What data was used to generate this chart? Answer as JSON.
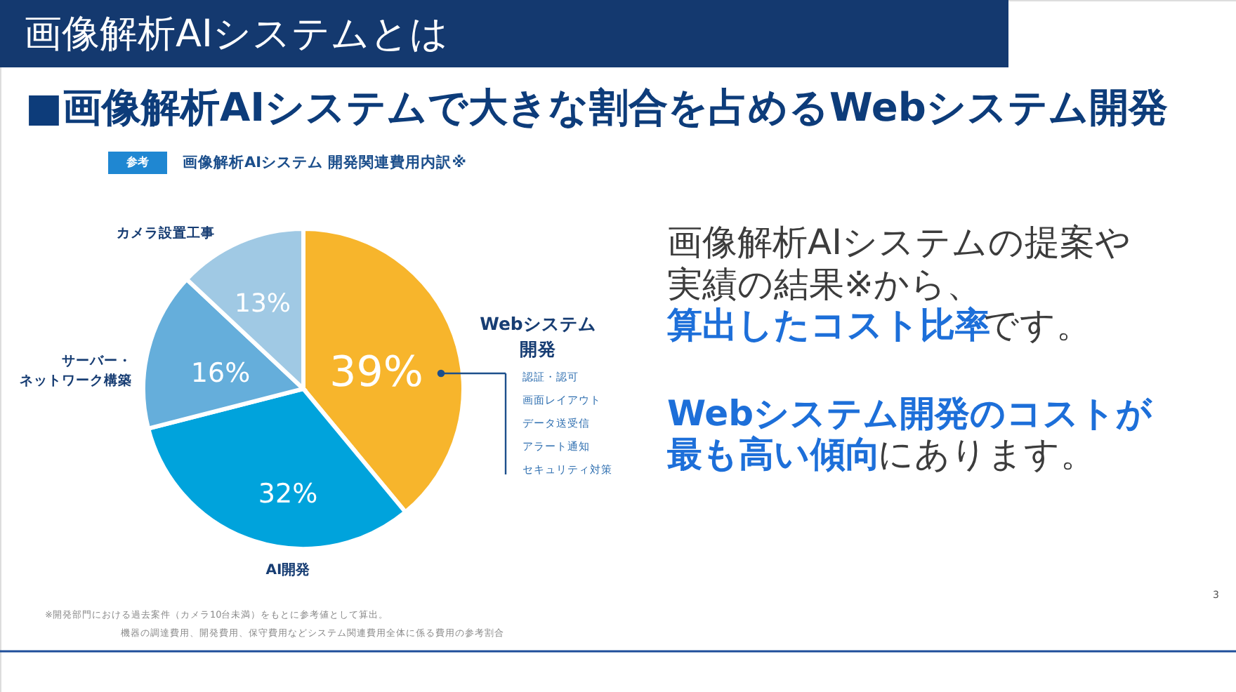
{
  "chart_data": {
    "type": "pie",
    "title": "画像解析AIシステムとは",
    "subtitle": "■画像解析AIシステムで大きな割合を占めるWebシステム開発",
    "categories": [
      "Webシステム開発",
      "AI開発",
      "サーバー・ネットワーク構築",
      "カメラ設置工事"
    ],
    "values": [
      39,
      32,
      16,
      13
    ],
    "colors": [
      "#f7b52c",
      "#00a3dc",
      "#65aedb",
      "#a0c9e4"
    ],
    "value_labels": [
      "39%",
      "32%",
      "16%",
      "13%"
    ],
    "annotations": [
      "参考",
      "画像解析AIシステム 開発関連費用内訳※",
      "認証・認可",
      "画面レイアウト",
      "データ送受信",
      "アラート通知",
      "セキュリティ対策",
      "画像解析AIシステムの提案や",
      "実績の結果※から、",
      "算出したコスト比率",
      "です。",
      "Webシステム開発のコストが",
      "最も高い傾向",
      "にあります。",
      "※開発部門における過去案件（カメラ10台未満）をもとに参考値として算出。",
      "機器の調達費用、開発費用、保守費用などシステム関連費用全体に係る費用の参考割合",
      "3"
    ]
  }
}
